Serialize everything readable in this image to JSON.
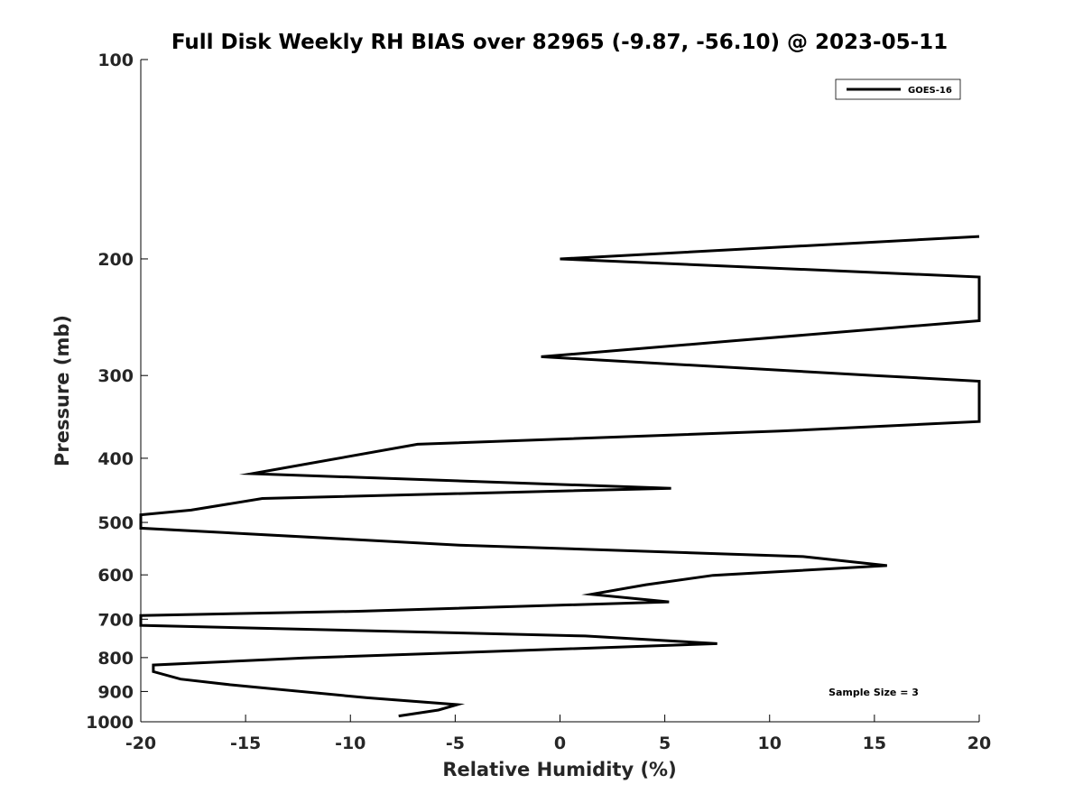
{
  "chart_data": {
    "type": "line",
    "title": "Full Disk Weekly RH BIAS over 82965 (-9.87, -56.10) @ 2023-05-11",
    "xlabel": "Relative Humidity (%)",
    "ylabel": "Pressure (mb)",
    "xlim": [
      -20,
      20
    ],
    "ylim": [
      1000,
      100
    ],
    "y_scale": "log",
    "x_ticks": [
      -20,
      -15,
      -10,
      -5,
      0,
      5,
      10,
      15,
      20
    ],
    "x_tick_labels": [
      "-20",
      "-15",
      "-10",
      "-5",
      "0",
      "5",
      "10",
      "15",
      "20"
    ],
    "y_ticks": [
      100,
      200,
      300,
      400,
      500,
      600,
      700,
      800,
      900,
      1000
    ],
    "y_tick_labels": [
      "100",
      "200",
      "300",
      "400",
      "500",
      "600",
      "700",
      "800",
      "900",
      "1000"
    ],
    "grid": false,
    "legend_position": "top-right",
    "annotation": "Sample Size = 3",
    "series": [
      {
        "name": "GOES-16",
        "color": "#000000",
        "points": [
          [
            20,
            185
          ],
          [
            0,
            200
          ],
          [
            20,
            213
          ],
          [
            20,
            248
          ],
          [
            8.2,
            266
          ],
          [
            -0.9,
            281
          ],
          [
            15,
            300
          ],
          [
            20,
            306
          ],
          [
            20,
            352
          ],
          [
            10.5,
            364
          ],
          [
            -6.8,
            381
          ],
          [
            -14.7,
            422
          ],
          [
            5.3,
            444
          ],
          [
            -14.2,
            460
          ],
          [
            -17.6,
            479
          ],
          [
            -20,
            487
          ],
          [
            -20,
            510
          ],
          [
            -4.8,
            541
          ],
          [
            11.6,
            563
          ],
          [
            15.6,
            581
          ],
          [
            7.3,
            601
          ],
          [
            4.1,
            621
          ],
          [
            1.5,
            642
          ],
          [
            5.2,
            659
          ],
          [
            -9.6,
            681
          ],
          [
            -20,
            691
          ],
          [
            -20,
            715
          ],
          [
            1.2,
            742
          ],
          [
            7.5,
            762
          ],
          [
            -12.2,
            801
          ],
          [
            -19.4,
            821
          ],
          [
            -19.4,
            840
          ],
          [
            -18.1,
            862
          ],
          [
            -15.6,
            880
          ],
          [
            -9.2,
            920
          ],
          [
            -4.9,
            942
          ],
          [
            -5.8,
            960
          ],
          [
            -7.7,
            980
          ]
        ]
      }
    ]
  }
}
